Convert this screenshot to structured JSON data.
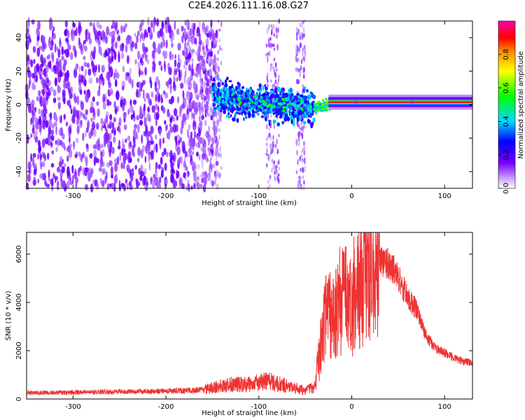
{
  "title": "C2E4.2026.111.16.08.G27",
  "colors": {
    "snr_line": "#ee3333",
    "frame": "#000000",
    "background": "#ffffff"
  },
  "chart_data": [
    {
      "type": "heatmap",
      "xlabel": "Height of straight line (km)",
      "ylabel": "Frequency (Hz)",
      "xlim": [
        -350,
        130
      ],
      "ylim": [
        -50,
        50
      ],
      "xticks": [
        -300,
        -200,
        -100,
        0,
        100
      ],
      "yticks": [
        -40,
        -20,
        0,
        20,
        40
      ],
      "colorbar": {
        "label": "Normalized spectral amplitude",
        "range": [
          0,
          1
        ],
        "ticks": [
          "0.0",
          "0.2",
          "0.4",
          "0.6",
          "0.8"
        ],
        "colormap": "rainbow (white-violet-blue-cyan-green-yellow-orange-red-magenta)"
      },
      "features": [
        {
          "name": "noise",
          "x_range": [
            -350,
            -150
          ],
          "freq_range": [
            -50,
            50
          ],
          "amplitude": 0.1
        },
        {
          "name": "broadband_patch",
          "x_range": [
            -150,
            -45
          ],
          "freq_center": 3,
          "freq_halfwidth": 10,
          "amplitude": 0.35
        },
        {
          "name": "tone",
          "x_range": [
            -30,
            130
          ],
          "freq_center": 1.5,
          "amplitude": 0.9
        }
      ]
    },
    {
      "type": "line",
      "xlabel": "Height of straight line (km)",
      "ylabel": "SNR (10 * v/v)",
      "xlim": [
        -350,
        130
      ],
      "ylim": [
        0,
        6900
      ],
      "xticks": [
        -300,
        -200,
        -100,
        0,
        100
      ],
      "yticks": [
        0,
        2000,
        4000,
        6000
      ],
      "series": [
        {
          "name": "SNR",
          "x": [
            -350,
            -300,
            -250,
            -200,
            -160,
            -130,
            -110,
            -90,
            -70,
            -50,
            -40,
            -30,
            -20,
            -10,
            0,
            10,
            20,
            30,
            40,
            50,
            60,
            70,
            80,
            90,
            100,
            110,
            120,
            130
          ],
          "values": [
            250,
            280,
            300,
            320,
            380,
            600,
            600,
            750,
            550,
            350,
            500,
            3000,
            3600,
            4000,
            3800,
            4600,
            5200,
            5700,
            5600,
            5100,
            4200,
            3700,
            2600,
            2100,
            1900,
            1700,
            1550,
            1500
          ]
        }
      ]
    }
  ]
}
